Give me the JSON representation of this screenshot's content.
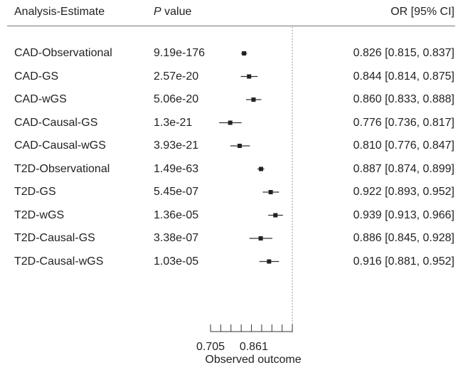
{
  "headers": {
    "analysis": "Analysis-Estimate",
    "p_italic": "P",
    "p_rest": " value",
    "or": "OR [95% CI]"
  },
  "rows": [
    {
      "label": "CAD-Observational",
      "p": "9.19e-176",
      "or_text": "0.826 [0.815, 0.837]"
    },
    {
      "label": "CAD-GS",
      "p": "2.57e-20",
      "or_text": "0.844 [0.814, 0.875]"
    },
    {
      "label": "CAD-wGS",
      "p": "5.06e-20",
      "or_text": "0.860 [0.833, 0.888]"
    },
    {
      "label": "CAD-Causal-GS",
      "p": "1.3e-21",
      "or_text": "0.776 [0.736, 0.817]"
    },
    {
      "label": "CAD-Causal-wGS",
      "p": "3.93e-21",
      "or_text": "0.810 [0.776, 0.847]"
    },
    {
      "label": "T2D-Observational",
      "p": "1.49e-63",
      "or_text": "0.887 [0.874, 0.899]"
    },
    {
      "label": "T2D-GS",
      "p": "5.45e-07",
      "or_text": "0.922 [0.893, 0.952]"
    },
    {
      "label": "T2D-wGS",
      "p": "1.36e-05",
      "or_text": "0.939 [0.913, 0.966]"
    },
    {
      "label": "T2D-Causal-GS",
      "p": "3.38e-07",
      "or_text": "0.886 [0.845, 0.928]"
    },
    {
      "label": "T2D-Causal-wGS",
      "p": "1.03e-05",
      "or_text": "0.916 [0.881, 0.952]"
    }
  ],
  "chart_data": {
    "type": "forest",
    "xlabel": "Observed outcome",
    "tick_labels": [
      "0.705",
      "0.861"
    ],
    "xlim": [
      0.705,
      1.0
    ],
    "reference_line": 1.0,
    "reference_style": "dotted",
    "estimates": [
      0.826,
      0.844,
      0.86,
      0.776,
      0.81,
      0.887,
      0.922,
      0.939,
      0.886,
      0.916
    ],
    "ci_low": [
      0.815,
      0.814,
      0.833,
      0.736,
      0.776,
      0.874,
      0.893,
      0.913,
      0.845,
      0.881
    ],
    "ci_high": [
      0.837,
      0.875,
      0.888,
      0.817,
      0.847,
      0.899,
      0.952,
      0.966,
      0.928,
      0.952
    ]
  }
}
